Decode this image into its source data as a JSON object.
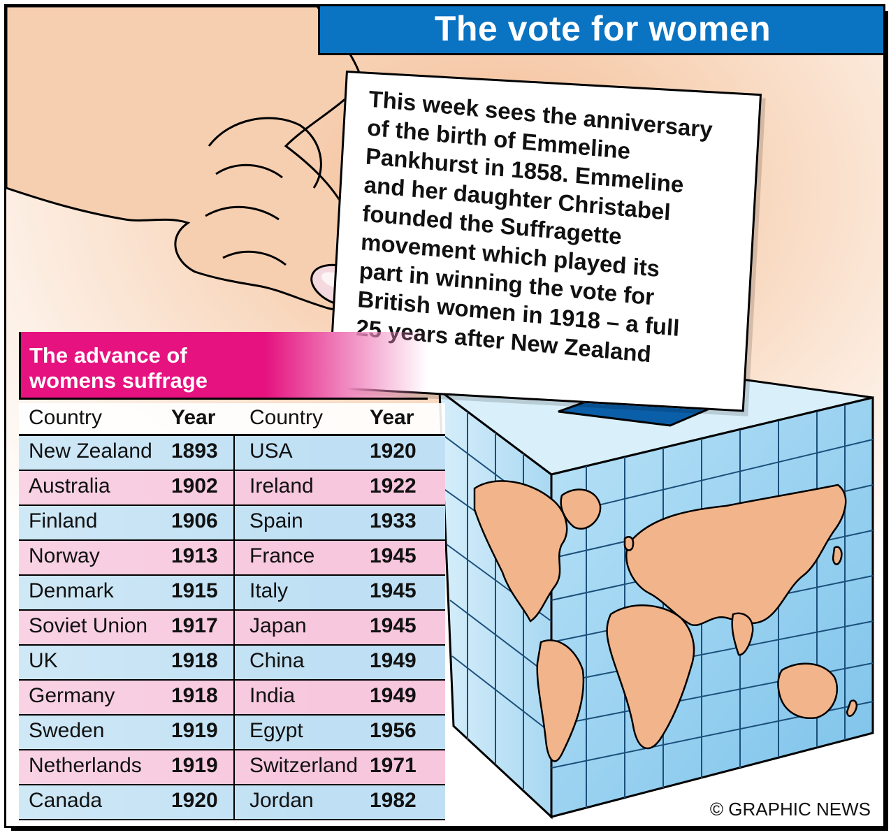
{
  "title": "The vote for women",
  "ballot_paper": {
    "text": "This week sees the anniversary\nof the birth of Emmeline\nPankhurst in 1858. Emmeline\nand her daughter Christabel\nfounded the Suffragette\nmovement which played its\npart in winning the vote for\nBritish women in 1918 – a full\n25 years after New Zealand"
  },
  "suffrage_table": {
    "heading": "The advance of\nwomens suffrage",
    "headers": [
      "Country",
      "Year",
      "Country",
      "Year"
    ],
    "rows": [
      [
        "New Zealand",
        "1893",
        "USA",
        "1920"
      ],
      [
        "Australia",
        "1902",
        "Ireland",
        "1922"
      ],
      [
        "Finland",
        "1906",
        "Spain",
        "1933"
      ],
      [
        "Norway",
        "1913",
        "France",
        "1945"
      ],
      [
        "Denmark",
        "1915",
        "Italy",
        "1945"
      ],
      [
        "Soviet Union",
        "1917",
        "Japan",
        "1945"
      ],
      [
        "UK",
        "1918",
        "China",
        "1949"
      ],
      [
        "Germany",
        "1918",
        "India",
        "1949"
      ],
      [
        "Sweden",
        "1919",
        "Egypt",
        "1956"
      ],
      [
        "Netherlands",
        "1919",
        "Switzerland",
        "1971"
      ],
      [
        "Canada",
        "1920",
        "Jordan",
        "1982"
      ]
    ]
  },
  "credit": "© GRAPHIC NEWS",
  "colors": {
    "title_bar": "#0a73c2",
    "heading_pink": "#e5127f",
    "row_blue": "#bfe0f4",
    "row_pink": "#f7c7de",
    "land": "#f2b48a",
    "box_face": "#9fd2f0"
  },
  "illustration": {
    "hand": "hand-icon",
    "ballot_box": "ballot-box-icon",
    "map": "world-map-icon"
  }
}
